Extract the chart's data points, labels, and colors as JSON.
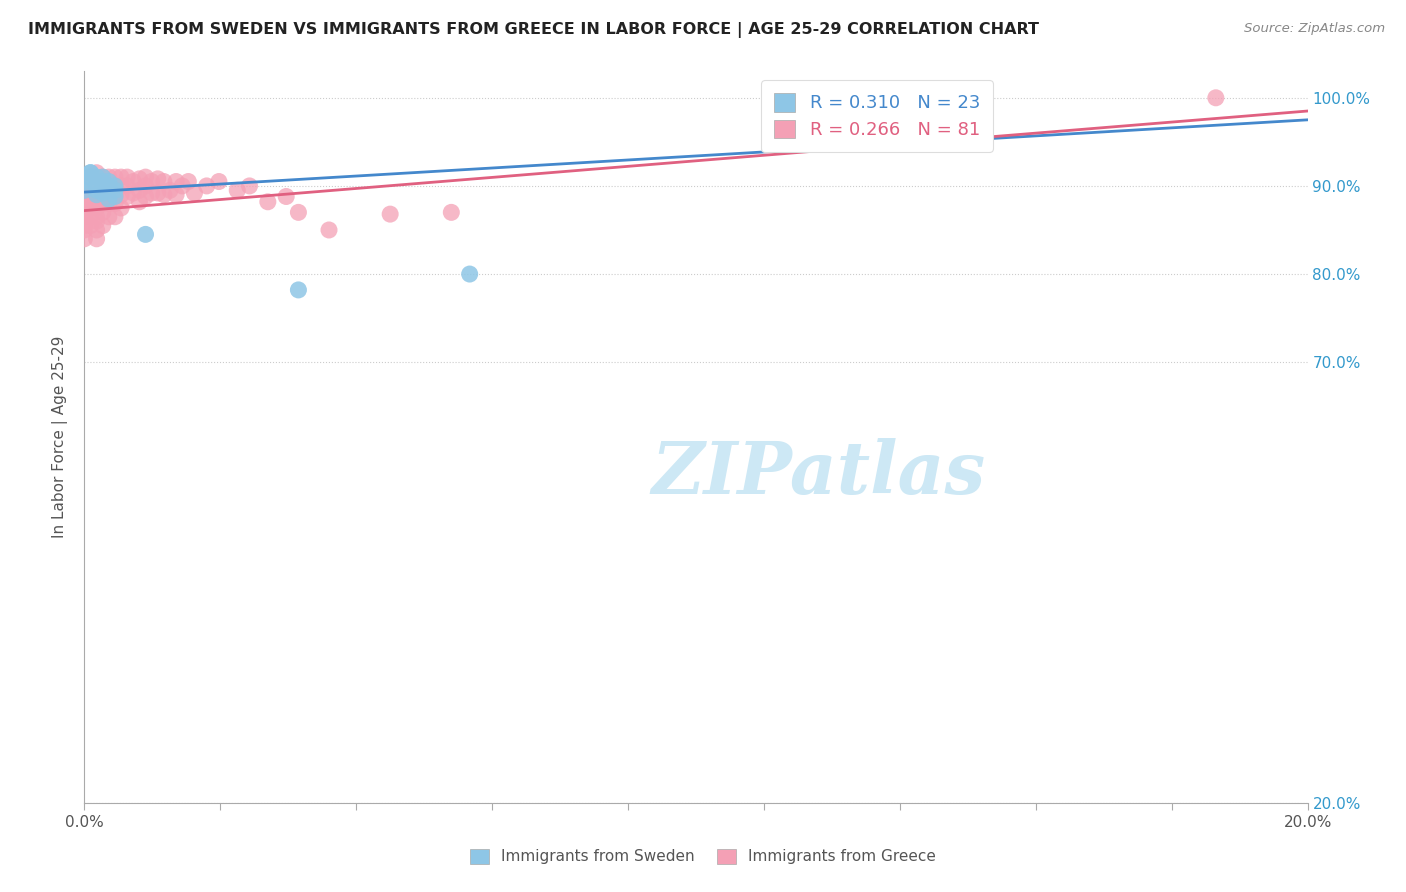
{
  "title": "IMMIGRANTS FROM SWEDEN VS IMMIGRANTS FROM GREECE IN LABOR FORCE | AGE 25-29 CORRELATION CHART",
  "source": "Source: ZipAtlas.com",
  "ylabel": "In Labor Force | Age 25-29",
  "xlim": [
    0.0,
    0.2
  ],
  "ylim": [
    0.2,
    1.03
  ],
  "sweden_color": "#8ec6e6",
  "greece_color": "#f4a0b5",
  "sweden_line_color": "#4488cc",
  "greece_line_color": "#e06080",
  "watermark_text": "ZIPatlas",
  "watermark_color": "#cde8f5",
  "background_color": "#ffffff",
  "grid_color": "#cccccc",
  "sweden_points_x": [
    0.0,
    0.0,
    0.001,
    0.001,
    0.001,
    0.002,
    0.002,
    0.002,
    0.002,
    0.003,
    0.003,
    0.003,
    0.003,
    0.003,
    0.004,
    0.004,
    0.004,
    0.005,
    0.005,
    0.005,
    0.01,
    0.035,
    0.063
  ],
  "sweden_points_y": [
    0.905,
    0.895,
    0.915,
    0.91,
    0.915,
    0.91,
    0.9,
    0.895,
    0.89,
    0.91,
    0.905,
    0.9,
    0.892,
    0.895,
    0.905,
    0.9,
    0.885,
    0.9,
    0.895,
    0.888,
    0.845,
    0.782,
    0.8
  ],
  "greece_points_x": [
    0.0,
    0.0,
    0.0,
    0.0,
    0.0,
    0.0,
    0.0,
    0.001,
    0.001,
    0.001,
    0.001,
    0.001,
    0.001,
    0.001,
    0.001,
    0.001,
    0.002,
    0.002,
    0.002,
    0.002,
    0.002,
    0.002,
    0.002,
    0.002,
    0.002,
    0.002,
    0.003,
    0.003,
    0.003,
    0.003,
    0.003,
    0.003,
    0.004,
    0.004,
    0.004,
    0.004,
    0.004,
    0.005,
    0.005,
    0.005,
    0.005,
    0.005,
    0.006,
    0.006,
    0.006,
    0.006,
    0.007,
    0.007,
    0.007,
    0.008,
    0.008,
    0.009,
    0.009,
    0.009,
    0.01,
    0.01,
    0.01,
    0.011,
    0.011,
    0.012,
    0.012,
    0.013,
    0.013,
    0.014,
    0.015,
    0.015,
    0.016,
    0.017,
    0.018,
    0.02,
    0.022,
    0.025,
    0.027,
    0.03,
    0.033,
    0.035,
    0.04,
    0.05,
    0.06,
    0.185
  ],
  "greece_points_y": [
    0.885,
    0.875,
    0.87,
    0.865,
    0.855,
    0.85,
    0.84,
    0.91,
    0.905,
    0.9,
    0.895,
    0.89,
    0.88,
    0.875,
    0.865,
    0.855,
    0.915,
    0.905,
    0.895,
    0.885,
    0.88,
    0.875,
    0.865,
    0.86,
    0.85,
    0.84,
    0.91,
    0.9,
    0.89,
    0.88,
    0.87,
    0.855,
    0.91,
    0.9,
    0.89,
    0.88,
    0.865,
    0.91,
    0.9,
    0.89,
    0.88,
    0.865,
    0.91,
    0.9,
    0.89,
    0.875,
    0.91,
    0.9,
    0.888,
    0.905,
    0.892,
    0.908,
    0.895,
    0.882,
    0.91,
    0.9,
    0.888,
    0.905,
    0.892,
    0.908,
    0.892,
    0.905,
    0.89,
    0.895,
    0.905,
    0.89,
    0.9,
    0.905,
    0.892,
    0.9,
    0.905,
    0.895,
    0.9,
    0.882,
    0.888,
    0.87,
    0.85,
    0.868,
    0.87,
    1.0
  ],
  "sweden_line_x": [
    0.0,
    0.2
  ],
  "sweden_line_y": [
    0.893,
    0.975
  ],
  "greece_line_x": [
    0.0,
    0.2
  ],
  "greece_line_y": [
    0.872,
    0.985
  ]
}
